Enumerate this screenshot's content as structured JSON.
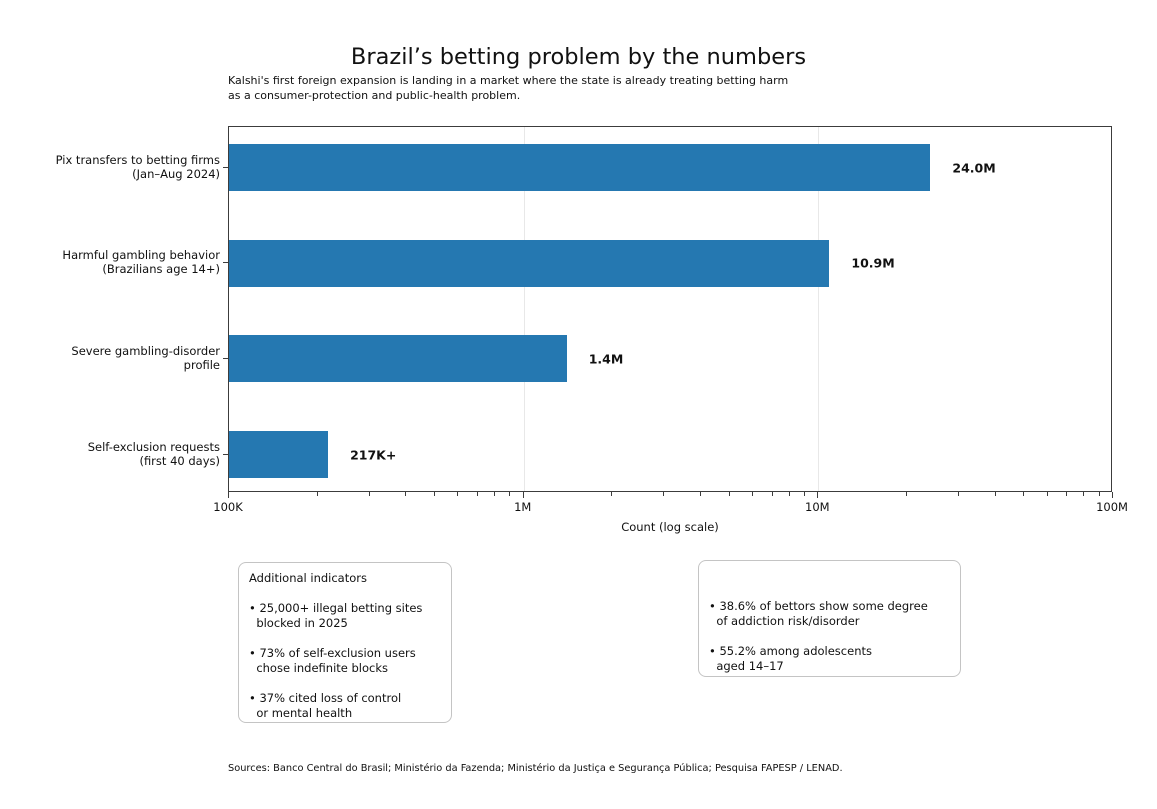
{
  "title": "Brazil’s betting problem by the numbers",
  "subtitle": "Kalshi's first foreign expansion is landing in a market where the state is already treating betting harm\nas a consumer-protection and public-health problem.",
  "chart_data": {
    "type": "bar",
    "orientation": "horizontal",
    "categories": [
      "Pix transfers to betting firms\n(Jan–Aug 2024)",
      "Harmful gambling behavior\n(Brazilians age 14+)",
      "Severe gambling-disorder\nprofile",
      "Self-exclusion requests\n(first 40 days)"
    ],
    "values": [
      24000000,
      10900000,
      1400000,
      217000
    ],
    "value_labels": [
      "24.0M",
      "10.9M",
      "1.4M",
      "217K+"
    ],
    "xlabel": "Count (log scale)",
    "x_scale": "log",
    "xlim": [
      100000,
      100000000
    ],
    "x_ticks": [
      {
        "label": "100K",
        "value": 100000
      },
      {
        "label": "1M",
        "value": 1000000
      },
      {
        "label": "10M",
        "value": 10000000
      },
      {
        "label": "100M",
        "value": 100000000
      }
    ],
    "grid": true,
    "legend": "none",
    "bar_color": "#2578b1",
    "grid_color": "#e8e8e8"
  },
  "annotations": {
    "left_box": {
      "title": "Additional indicators",
      "bullets": [
        "• 25,000+ illegal betting sites\n  blocked in 2025",
        "• 73% of self-exclusion users\n  chose indefinite blocks",
        "• 37% cited loss of control\n  or mental health"
      ]
    },
    "right_box": {
      "bullets": [
        "• 38.6% of bettors show some degree\n  of addiction risk/disorder",
        "• 55.2% among adolescents\n  aged 14–17"
      ]
    }
  },
  "footer": {
    "sources": "Sources: Banco Central do Brasil; Ministério da Fazenda; Ministério da Justiça e Segurança Pública; Pesquisa FAPESP / LENAD."
  }
}
